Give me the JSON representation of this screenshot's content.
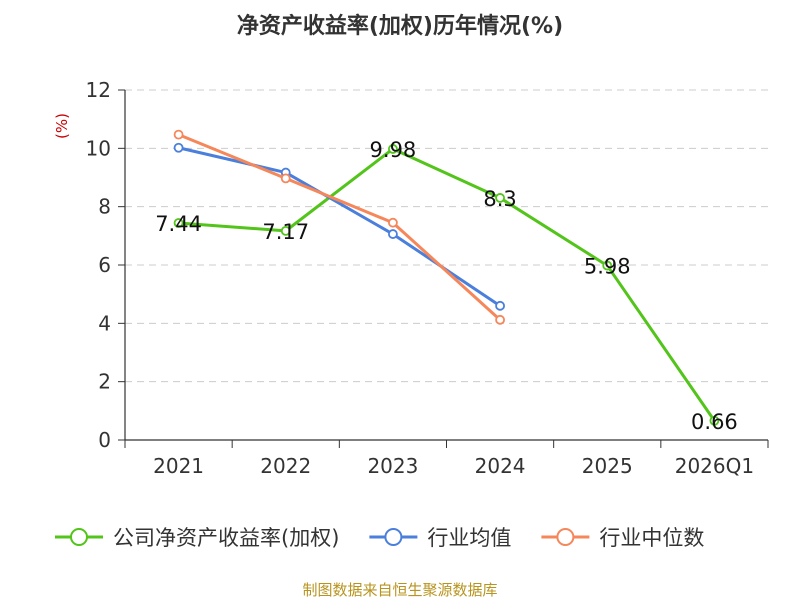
{
  "chart_data": {
    "type": "line",
    "title": "净资产收益率(加权)历年情况(%)",
    "ylabel": "(%)",
    "xlabel": "",
    "categories": [
      "2021",
      "2022",
      "2023",
      "2024",
      "2025",
      "2026Q1"
    ],
    "ylim": [
      0,
      12
    ],
    "yticks": [
      0,
      2,
      4,
      6,
      8,
      10,
      12
    ],
    "grid": true,
    "legend_position": "bottom",
    "series": [
      {
        "name": "公司净资产收益率(加权)",
        "color": "#52c41a",
        "values": [
          7.44,
          7.17,
          9.98,
          8.3,
          5.98,
          0.66
        ],
        "labels": [
          "7.44",
          "7.17",
          "9.98",
          "8.3",
          "5.98",
          "0.66"
        ]
      },
      {
        "name": "行业均值",
        "color": "#4a7fdc",
        "values": [
          10.02,
          9.17,
          7.06,
          4.6,
          null,
          null
        ]
      },
      {
        "name": "行业中位数",
        "color": "#f5875a",
        "values": [
          10.47,
          8.97,
          7.45,
          4.12,
          null,
          null
        ]
      }
    ],
    "source": "制图数据来自恒生聚源数据库"
  }
}
